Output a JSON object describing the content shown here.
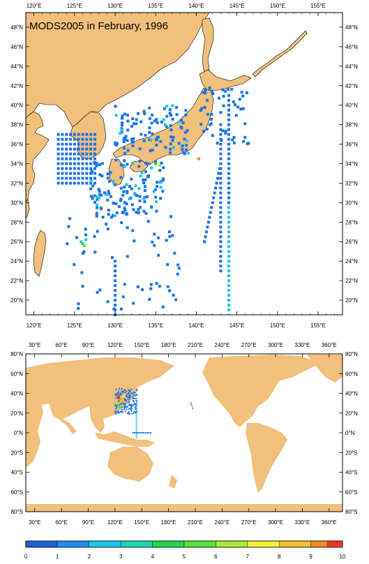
{
  "title": "MODS2005 in February, 1996",
  "colors": {
    "land": "#f0c07c",
    "ocean": "#ffffff",
    "border": "#000000"
  },
  "regional_map": {
    "lon_labels": [
      "120°E",
      "125°E",
      "130°E",
      "135°E",
      "140°E",
      "145°E",
      "150°E",
      "155°E"
    ],
    "lon_values": [
      120,
      125,
      130,
      135,
      140,
      145,
      150,
      155
    ],
    "lat_labels": [
      "20°N",
      "22°N",
      "24°N",
      "26°N",
      "28°N",
      "30°N",
      "32°N",
      "34°N",
      "36°N",
      "38°N",
      "40°N",
      "42°N",
      "44°N",
      "46°N",
      "48°N"
    ],
    "lat_values": [
      20,
      22,
      24,
      26,
      28,
      30,
      32,
      34,
      36,
      38,
      40,
      42,
      44,
      46,
      48
    ],
    "lon_range": [
      119,
      158
    ],
    "lat_range": [
      18.5,
      49.5
    ]
  },
  "global_map": {
    "lon_labels": [
      "30°E",
      "60°E",
      "90°E",
      "120°E",
      "150°E",
      "180°E",
      "210°E",
      "240°E",
      "270°E",
      "300°E",
      "330°E",
      "360°E"
    ],
    "lon_values": [
      30,
      60,
      90,
      120,
      150,
      180,
      210,
      240,
      270,
      300,
      330,
      360
    ],
    "lat_labels": [
      "80°S",
      "60°S",
      "40°S",
      "20°S",
      "0°N",
      "20°N",
      "40°N",
      "60°N",
      "80°N"
    ],
    "lat_values": [
      -80,
      -60,
      -40,
      -20,
      0,
      20,
      40,
      60,
      80
    ],
    "lon_range": [
      20,
      375
    ],
    "lat_range": [
      -80,
      80
    ]
  },
  "colorbar": {
    "labels": [
      "0",
      "1",
      "2",
      "3",
      "4",
      "5",
      "6",
      "7",
      "8",
      "9",
      "10"
    ],
    "colors": [
      "#1a5fd6",
      "#1e8fee",
      "#1fc6e8",
      "#1ed6b4",
      "#22d84a",
      "#57e23a",
      "#a6ee38",
      "#f2f234",
      "#f8c032",
      "#f28a2a",
      "#e63a1e"
    ]
  }
}
